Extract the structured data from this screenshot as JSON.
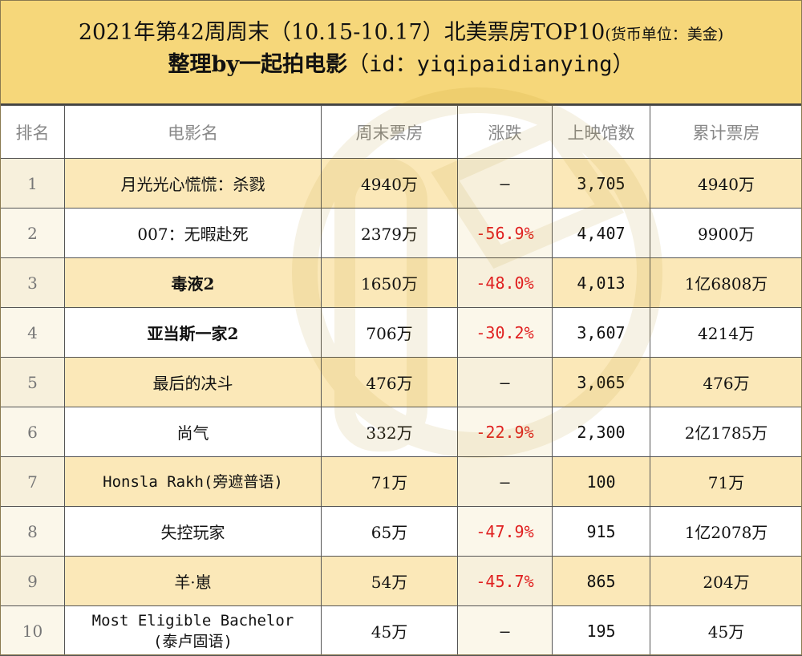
{
  "header": {
    "title": "2021年第42周周末（10.15-10.17）北美票房TOP10",
    "unit_note": "(货币单位：美金)",
    "subtitle_prefix": "整理by一起拍电影",
    "subtitle_id": "（id：yiqipaidianying）"
  },
  "table": {
    "columns": [
      "排名",
      "电影名",
      "周末票房",
      "涨跌",
      "上映馆数",
      "累计票房"
    ],
    "rows": [
      {
        "rank": "1",
        "title": "月光光心慌慌：杀戮",
        "weekend": "4940万",
        "change": "–",
        "screens": "3,705",
        "total": "4940万"
      },
      {
        "rank": "2",
        "title": "007：无暇赴死",
        "weekend": "2379万",
        "change": "-56.9%",
        "screens": "4,407",
        "total": "9900万"
      },
      {
        "rank": "3",
        "title": "毒液2",
        "weekend": "1650万",
        "change": "-48.0%",
        "screens": "4,013",
        "total": "1亿6808万"
      },
      {
        "rank": "4",
        "title": "亚当斯一家2",
        "weekend": "706万",
        "change": "-30.2%",
        "screens": "3,607",
        "total": "4214万"
      },
      {
        "rank": "5",
        "title": "最后的决斗",
        "weekend": "476万",
        "change": "–",
        "screens": "3,065",
        "total": "476万"
      },
      {
        "rank": "6",
        "title": "尚气",
        "weekend": "332万",
        "change": "-22.9%",
        "screens": "2,300",
        "total": "2亿1785万"
      },
      {
        "rank": "7",
        "title": "Honsla Rakh(旁遮普语)",
        "weekend": "71万",
        "change": "–",
        "screens": "100",
        "total": "71万"
      },
      {
        "rank": "8",
        "title": "失控玩家",
        "weekend": "65万",
        "change": "-47.9%",
        "screens": "915",
        "total": "1亿2078万"
      },
      {
        "rank": "9",
        "title": "羊·崽",
        "weekend": "54万",
        "change": "-45.7%",
        "screens": "865",
        "total": "204万"
      },
      {
        "rank": "10",
        "title": "Most Eligible Bachelor\n(泰卢固语)",
        "weekend": "45万",
        "change": "–",
        "screens": "195",
        "total": "45万"
      }
    ]
  },
  "watermark": {
    "text": "一起拍电影",
    "color": "#c9a227"
  },
  "colors": {
    "header_bg": "#f6d77a",
    "odd_row_bg": "#fbe8b8",
    "negative": "#e02020"
  }
}
